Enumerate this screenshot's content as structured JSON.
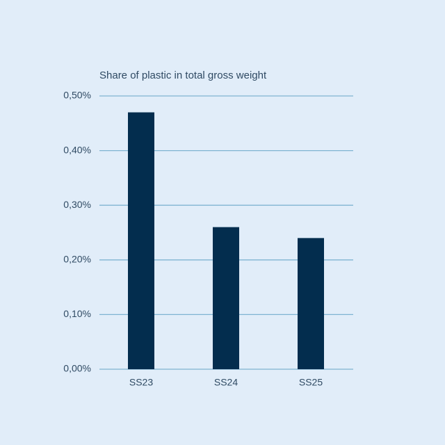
{
  "chart_data": {
    "type": "bar",
    "title": "Share of plastic in total gross weight",
    "categories": [
      "SS23",
      "SS24",
      "SS25"
    ],
    "values": [
      0.47,
      0.26,
      0.24
    ],
    "color": "#032d4e",
    "ylim": [
      0,
      0.5
    ],
    "yticks": [
      {
        "value": 0,
        "label": "0,00%"
      },
      {
        "value": 0.1,
        "label": "0,10%"
      },
      {
        "value": 0.2,
        "label": "0,20%"
      },
      {
        "value": 0.3,
        "label": "0,30%"
      },
      {
        "value": 0.4,
        "label": "0,40%"
      },
      {
        "value": 0.5,
        "label": "0,50%"
      }
    ],
    "grid": true
  }
}
